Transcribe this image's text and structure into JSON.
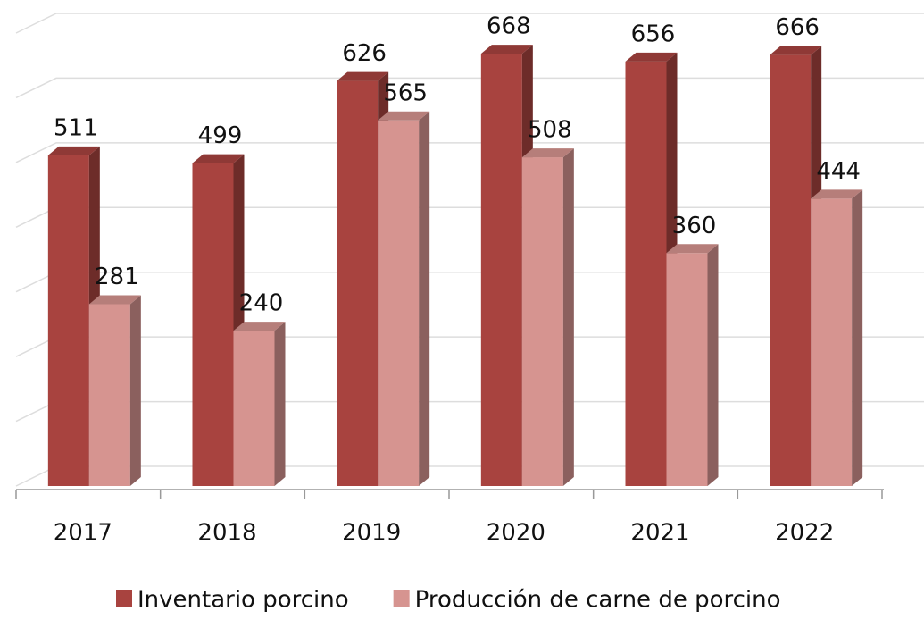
{
  "chart_data": {
    "type": "bar3d",
    "categories": [
      "2017",
      "2018",
      "2019",
      "2020",
      "2021",
      "2022"
    ],
    "series": [
      {
        "name": "Inventario porcino",
        "color": "#a8433f",
        "values": [
          511,
          499,
          626,
          668,
          656,
          666
        ]
      },
      {
        "name": "Producción de carne de porcino",
        "color": "#d69490",
        "values": [
          281,
          240,
          565,
          508,
          360,
          444
        ]
      }
    ],
    "ylim": [
      0,
      700
    ],
    "yticks": [
      0,
      100,
      200,
      300,
      400,
      500,
      600,
      700
    ],
    "grid": true,
    "legend": "bottom"
  }
}
